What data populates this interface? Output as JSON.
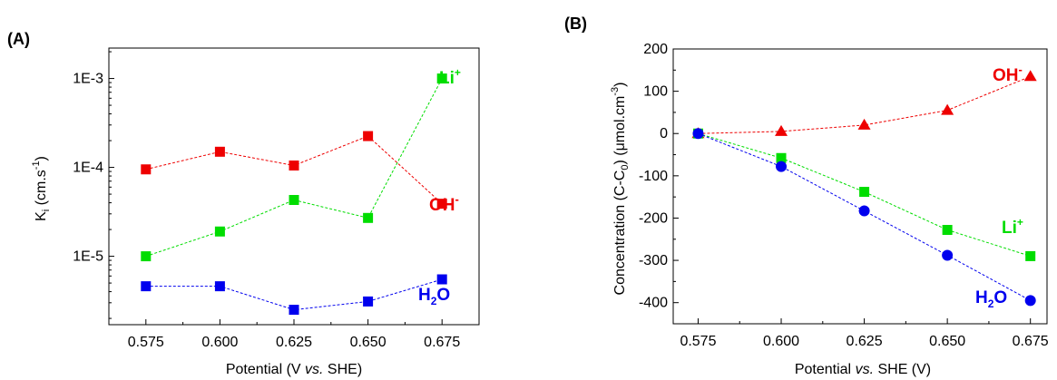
{
  "chart_data": [
    {
      "panel_label": "(A)",
      "type": "scatter",
      "x": [
        0.575,
        0.6,
        0.625,
        0.65,
        0.675
      ],
      "xlabel": "Potential (V vs. SHE)",
      "ylabel": "K_i (cm.s^-1)",
      "yscale": "log",
      "xlim": [
        0.5625,
        0.6875
      ],
      "ylim": [
        1.7e-06,
        0.0022
      ],
      "x_ticks": [
        "0.575",
        "0.600",
        "0.625",
        "0.650",
        "0.675"
      ],
      "y_ticks": [
        "1E-3",
        "1E-4",
        "1E-5"
      ],
      "y_tick_values": [
        0.001,
        0.0001,
        1e-05
      ],
      "series": [
        {
          "name": "Li+",
          "color": "#00dd00",
          "marker": "square",
          "line": "dashed",
          "values": [
            1e-05,
            1.9e-05,
            4.3e-05,
            2.7e-05,
            0.001
          ]
        },
        {
          "name": "OH-",
          "color": "#ee0000",
          "marker": "square",
          "line": "dashed",
          "values": [
            9.5e-05,
            0.00015,
            0.000105,
            0.000225,
            3.9e-05
          ]
        },
        {
          "name": "H2O",
          "color": "#0000ee",
          "marker": "square",
          "line": "dashed",
          "values": [
            4.6e-06,
            4.6e-06,
            2.5e-06,
            3.1e-06,
            5.5e-06
          ]
        }
      ]
    },
    {
      "panel_label": "(B)",
      "type": "scatter",
      "x": [
        0.575,
        0.6,
        0.625,
        0.65,
        0.675
      ],
      "xlabel": "Potential vs. SHE (V)",
      "ylabel": "Concentration (C-C_0) (μmol.cm^-3)",
      "xlim": [
        0.5675,
        0.68
      ],
      "ylim": [
        -450,
        200
      ],
      "x_ticks": [
        "0.575",
        "0.600",
        "0.625",
        "0.650",
        "0.675"
      ],
      "y_ticks": [
        "200",
        "100",
        "0",
        "-100",
        "-200",
        "-300",
        "-400"
      ],
      "y_tick_values": [
        200,
        100,
        0,
        -100,
        -200,
        -300,
        -400
      ],
      "series": [
        {
          "name": "OH-",
          "color": "#ee0000",
          "marker": "triangle",
          "line": "dashed",
          "values": [
            0,
            5,
            20,
            55,
            135
          ]
        },
        {
          "name": "Li+",
          "color": "#00dd00",
          "marker": "square",
          "line": "dashed",
          "values": [
            0,
            -58,
            -138,
            -228,
            -290
          ]
        },
        {
          "name": "H2O",
          "color": "#0000ee",
          "marker": "circle",
          "line": "dashed",
          "values": [
            0,
            -78,
            -183,
            -288,
            -395
          ]
        }
      ]
    }
  ]
}
